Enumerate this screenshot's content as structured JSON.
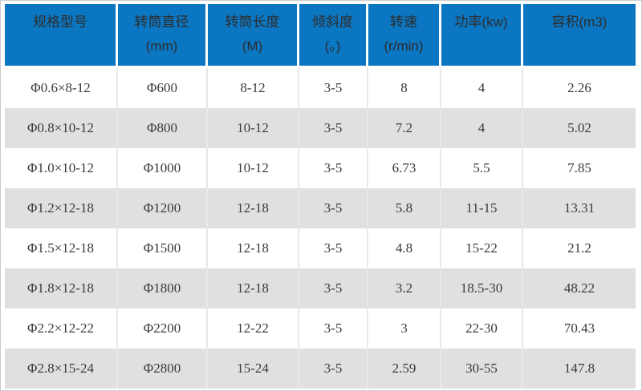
{
  "style": {
    "header_bg": "#0b76c2",
    "header_text": "#2d2d2d",
    "body_text": "#3a3a3a",
    "row_alt_bg": "#e0e0e0",
    "separator": "#e8e8e8",
    "canvas_border": "#cccccc"
  },
  "chart_data": {
    "type": "table",
    "title": "",
    "columns": [
      {
        "line1": "规格型号",
        "line2": ""
      },
      {
        "line1": "转筒直径",
        "line2": "(mm)"
      },
      {
        "line1": "转筒长度",
        "line2": "(M)"
      },
      {
        "line1": "倾斜度",
        "line2": "(。)"
      },
      {
        "line1": "转速",
        "line2": "(r/min)"
      },
      {
        "line1": "功率(kw)",
        "line2": ""
      },
      {
        "line1": "容积(m3)",
        "line2": ""
      }
    ],
    "rows": [
      [
        "Φ0.6×8-12",
        "Φ600",
        "8-12",
        "3-5",
        "8",
        "4",
        "2.26"
      ],
      [
        "Φ0.8×10-12",
        "Φ800",
        "10-12",
        "3-5",
        "7.2",
        "4",
        "5.02"
      ],
      [
        "Φ1.0×10-12",
        "Φ1000",
        "10-12",
        "3-5",
        "6.73",
        "5.5",
        "7.85"
      ],
      [
        "Φ1.2×12-18",
        "Φ1200",
        "12-18",
        "3-5",
        "5.8",
        "11-15",
        "13.31"
      ],
      [
        "Φ1.5×12-18",
        "Φ1500",
        "12-18",
        "3-5",
        "4.8",
        "15-22",
        "21.2"
      ],
      [
        "Φ1.8×12-18",
        "Φ1800",
        "12-18",
        "3-5",
        "3.2",
        "18.5-30",
        "48.22"
      ],
      [
        "Φ2.2×12-22",
        "Φ2200",
        "12-22",
        "3-5",
        "3",
        "22-30",
        "70.43"
      ],
      [
        "Φ2.8×15-24",
        "Φ2800",
        "15-24",
        "3-5",
        "2.59",
        "30-55",
        "147.8"
      ]
    ]
  }
}
